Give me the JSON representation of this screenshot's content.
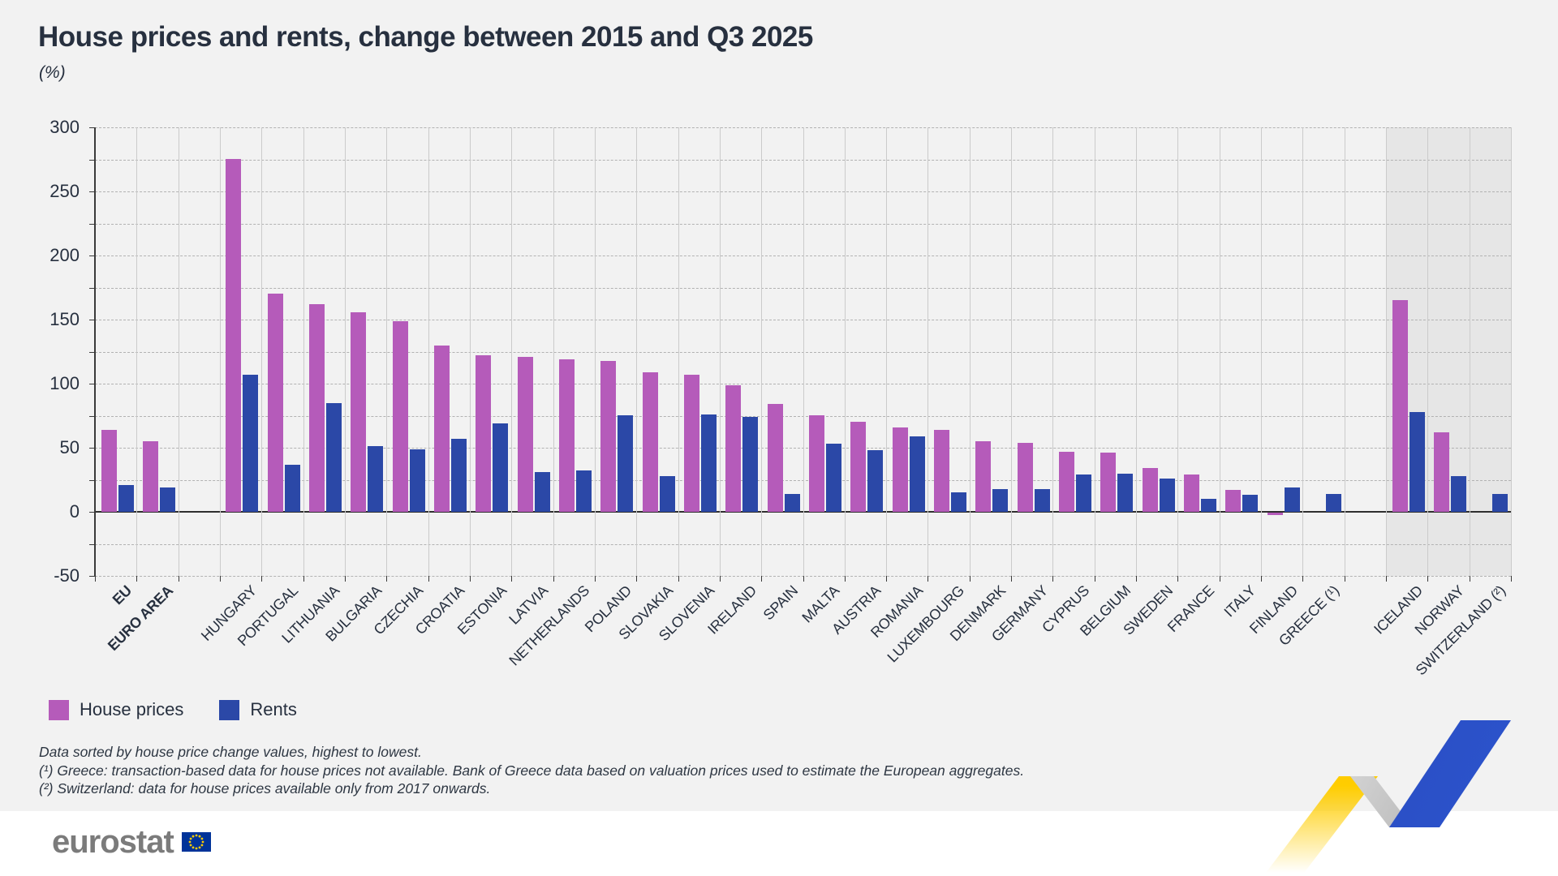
{
  "header": {
    "title": "House prices and rents, change between 2015 and Q3 2025",
    "subtitle": "(%)"
  },
  "legend": {
    "items": [
      {
        "label": "House prices",
        "color": "#b55bba"
      },
      {
        "label": "Rents",
        "color": "#2b48a7"
      }
    ]
  },
  "footnotes": {
    "line1": "Data sorted by house price change values, highest to lowest.",
    "line2": "(¹) Greece: transaction-based data for house prices not available. Bank of Greece data based on valuation prices used to estimate the European aggregates.",
    "line3": "(²) Switzerland: data for house prices available only from 2017 onwards."
  },
  "branding": {
    "wordmark": "eurostat",
    "flag_blue": "#003399",
    "flag_star_yellow": "#ffcc00"
  },
  "chart_data": {
    "type": "bar",
    "title": "House prices and rents, change between 2015 and Q3 2025",
    "ylabel": "(%)",
    "ylim": [
      -50,
      300
    ],
    "y_major_ticks": [
      300,
      250,
      200,
      150,
      100,
      50,
      0,
      -50
    ],
    "y_minor_step": 25,
    "grid": "horizontal dashed every 25, vertical solid per column",
    "legend_position": "bottom-left",
    "series_colors": {
      "house_prices": "#b55bba",
      "rents": "#2b48a7"
    },
    "efta_shaded_group": [
      "ICELAND",
      "NORWAY",
      "SWITZERLAND (²)"
    ],
    "slots": [
      {
        "label": "EU",
        "bold": true,
        "house": 64,
        "rent": 21
      },
      {
        "label": "EURO AREA",
        "bold": true,
        "house": 55,
        "rent": 19
      },
      null,
      {
        "label": "HUNGARY",
        "house": 275,
        "rent": 107
      },
      {
        "label": "PORTUGAL",
        "house": 170,
        "rent": 37
      },
      {
        "label": "LITHUANIA",
        "house": 162,
        "rent": 85
      },
      {
        "label": "BULGARIA",
        "house": 156,
        "rent": 51
      },
      {
        "label": "CZECHIA",
        "house": 149,
        "rent": 49
      },
      {
        "label": "CROATIA",
        "house": 130,
        "rent": 57
      },
      {
        "label": "ESTONIA",
        "house": 122,
        "rent": 69
      },
      {
        "label": "LATVIA",
        "house": 121,
        "rent": 31
      },
      {
        "label": "NETHERLANDS",
        "house": 119,
        "rent": 32
      },
      {
        "label": "POLAND",
        "house": 118,
        "rent": 75
      },
      {
        "label": "SLOVAKIA",
        "house": 109,
        "rent": 28
      },
      {
        "label": "SLOVENIA",
        "house": 107,
        "rent": 76
      },
      {
        "label": "IRELAND",
        "house": 99,
        "rent": 74
      },
      {
        "label": "SPAIN",
        "house": 84,
        "rent": 14
      },
      {
        "label": "MALTA",
        "house": 75,
        "rent": 53
      },
      {
        "label": "AUSTRIA",
        "house": 70,
        "rent": 48
      },
      {
        "label": "ROMANIA",
        "house": 66,
        "rent": 59
      },
      {
        "label": "LUXEMBOURG",
        "house": 64,
        "rent": 15
      },
      {
        "label": "DENMARK",
        "house": 55,
        "rent": 18
      },
      {
        "label": "GERMANY",
        "house": 54,
        "rent": 18
      },
      {
        "label": "CYPRUS",
        "house": 47,
        "rent": 29
      },
      {
        "label": "BELGIUM",
        "house": 46,
        "rent": 30
      },
      {
        "label": "SWEDEN",
        "house": 34,
        "rent": 26
      },
      {
        "label": "FRANCE",
        "house": 29,
        "rent": 10
      },
      {
        "label": "ITALY",
        "house": 17,
        "rent": 13
      },
      {
        "label": "FINLAND",
        "house": -2,
        "rent": 19
      },
      {
        "label": "GREECE (¹)",
        "house": null,
        "rent": 14
      },
      null,
      {
        "label": "ICELAND",
        "house": 165,
        "rent": 78,
        "efta": true
      },
      {
        "label": "NORWAY",
        "house": 62,
        "rent": 28,
        "efta": true
      },
      {
        "label": "SWITZERLAND (²)",
        "house": null,
        "rent": 14,
        "efta": true
      }
    ]
  }
}
